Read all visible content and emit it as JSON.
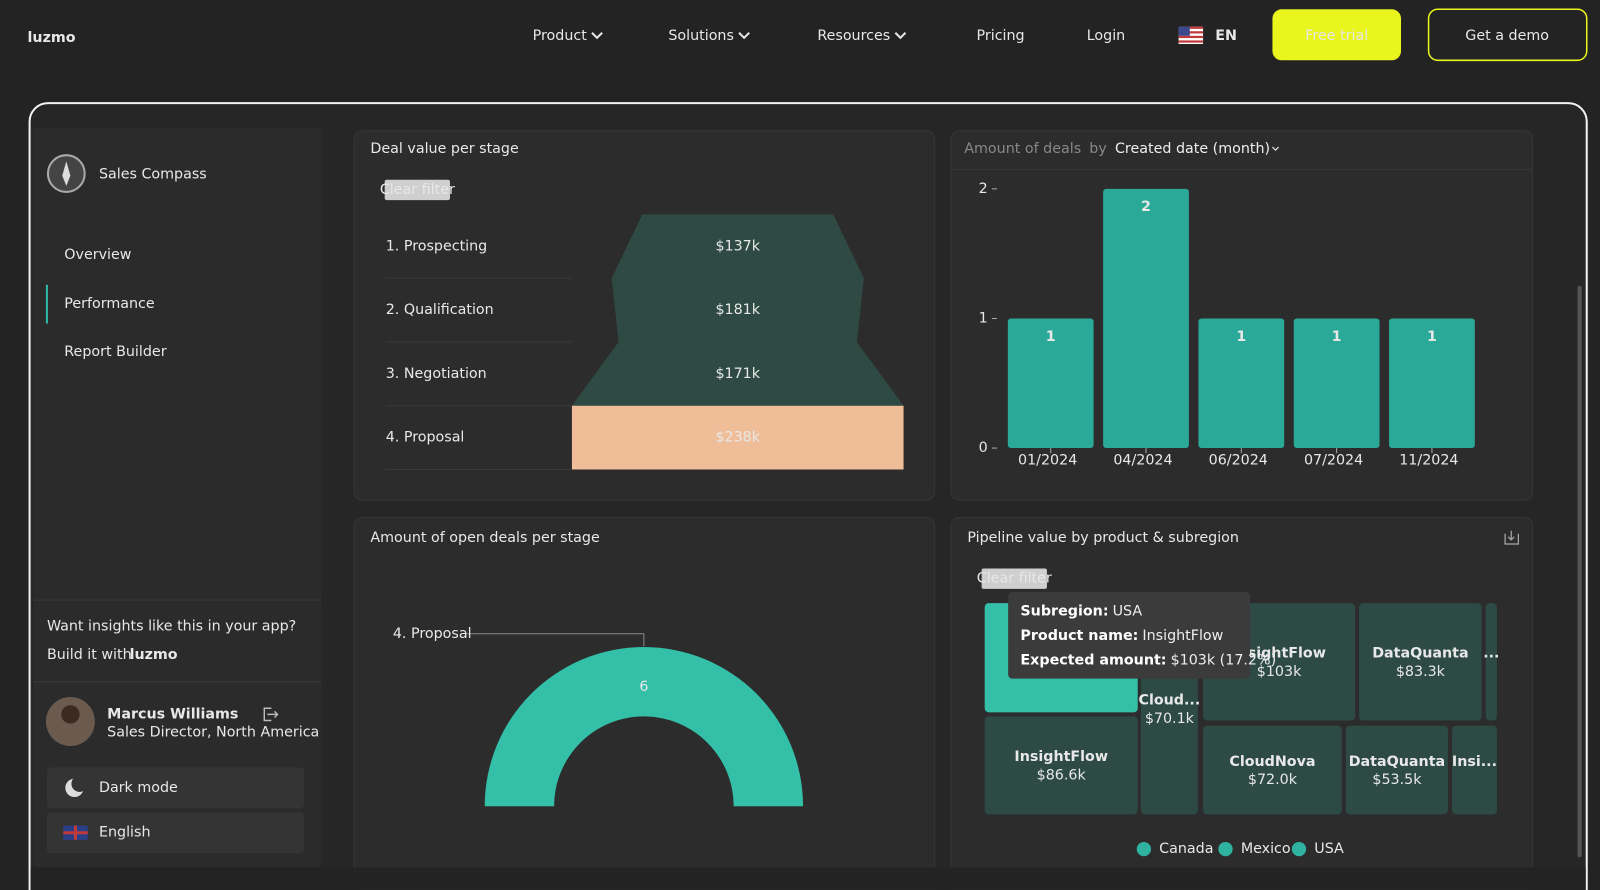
{
  "nav": {
    "logo": "luzmo",
    "menu": [
      "Product",
      "Solutions",
      "Resources",
      "Pricing",
      "Login"
    ],
    "language": "EN",
    "trial": "Free trial",
    "demo": "Get a demo"
  },
  "sidebar": {
    "app_title": "Sales Compass",
    "menu": [
      "Overview",
      "Performance",
      "Report Builder"
    ],
    "promo": "Want insights like this in your app?",
    "build_with": "Build it with",
    "build_logo": "luzmo",
    "user_name": "Marcus Williams",
    "user_role": "Sales Director, North America",
    "dark_mode": "Dark mode",
    "language": "English"
  },
  "funnel": {
    "title": "Deal value per stage",
    "clear_filter": "Clear filter",
    "categories": [
      "1. Prospecting",
      "2. Qualification",
      "3. Negotiation",
      "4. Proposal"
    ],
    "values": [
      137000,
      181000,
      171000,
      238000
    ],
    "value_labels": [
      "$137k",
      "$181k",
      "$171k",
      "$238k"
    ],
    "color": "#2e4a43",
    "highlight_color": "#efbd98",
    "highlighted": 3
  },
  "bar_chart": {
    "type": "bar",
    "measure": "Amount of deals",
    "by": "by",
    "dimension": "Created date (month)",
    "categories": [
      "01/2024",
      "04/2024",
      "06/2024",
      "07/2024",
      "11/2024"
    ],
    "values": [
      1,
      2,
      1,
      1,
      1
    ],
    "color": "#2ba998",
    "ylim": [
      0,
      2
    ],
    "yticks": [
      0,
      1,
      2
    ]
  },
  "gauge": {
    "title": "Amount of open deals per stage",
    "category": "4. Proposal",
    "value": 6,
    "color": "#33bfa8"
  },
  "treemap": {
    "title": "Pipeline value by product & subregion",
    "clear_filter": "Clear filter",
    "cells": [
      {
        "label": "Cloud...",
        "value": 70100,
        "value_label": "$70.1k"
      },
      {
        "label": "InsightFlow",
        "value": 103000,
        "value_label": "$103k"
      },
      {
        "label": "DataQuanta",
        "value": 83300,
        "value_label": "$83.3k"
      },
      {
        "label": "..."
      },
      {
        "label": "InsightFlow",
        "value": 86600,
        "value_label": "$86.6k"
      },
      {
        "label": "CloudNova",
        "value": 72000,
        "value_label": "$72.0k"
      },
      {
        "label": "DataQuanta",
        "value": 53500,
        "value_label": "$53.5k"
      },
      {
        "label": "Insi..."
      }
    ],
    "tooltip": {
      "subregion_label": "Subregion:",
      "subregion": "USA",
      "product_label": "Product name:",
      "product": "InsightFlow",
      "amount_label": "Expected amount:",
      "amount": "$103k (17.2%)"
    },
    "legend": [
      {
        "name": "Canada",
        "color": "#2fb3a0"
      },
      {
        "name": "Mexico",
        "color": "#2fb3a0"
      },
      {
        "name": "USA",
        "color": "#2fb3a0"
      }
    ]
  }
}
